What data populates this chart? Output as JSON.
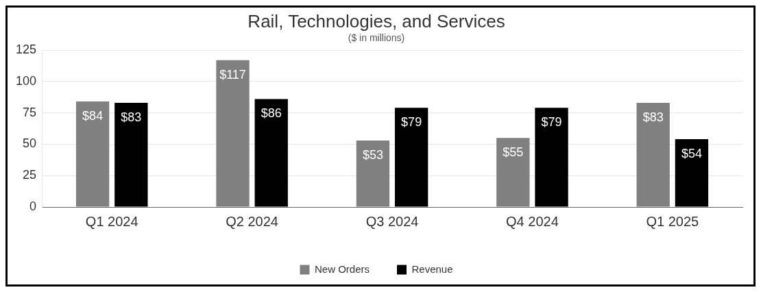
{
  "chart_data": {
    "type": "bar",
    "title": "Rail, Technologies, and Services",
    "subtitle": "($ in millions)",
    "categories": [
      "Q1 2024",
      "Q2 2024",
      "Q3 2024",
      "Q4 2024",
      "Q1 2025"
    ],
    "series": [
      {
        "name": "New Orders",
        "color": "#808080",
        "values": [
          84,
          117,
          53,
          55,
          83
        ],
        "value_labels": [
          "$84",
          "$117",
          "$53",
          "$55",
          "$83"
        ]
      },
      {
        "name": "Revenue",
        "color": "#000000",
        "values": [
          83,
          86,
          79,
          79,
          54
        ],
        "value_labels": [
          "$83",
          "$86",
          "$79",
          "$79",
          "$54"
        ]
      }
    ],
    "ylim": [
      0,
      125
    ],
    "yticks": [
      0,
      25,
      50,
      75,
      100,
      125
    ],
    "grid": "y",
    "legend": "bottom"
  }
}
